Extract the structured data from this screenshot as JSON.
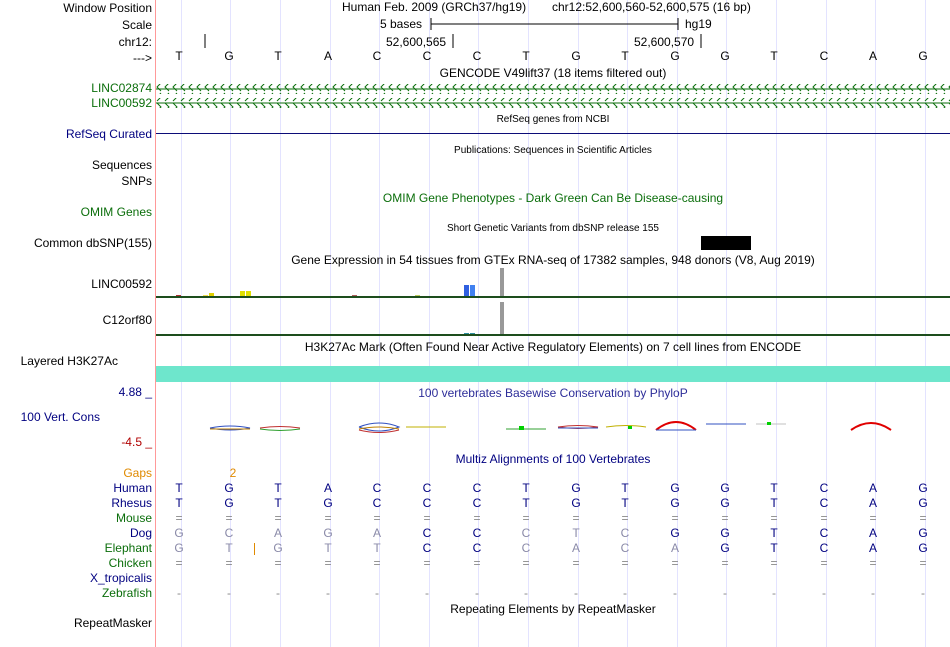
{
  "side": {
    "window_position": "Window Position",
    "scale": "Scale",
    "chrom": "chr12:",
    "strand": "--->",
    "linc02874": "LINC02874",
    "linc00592": "LINC00592",
    "refseq": "RefSeq Curated",
    "sequences": "Sequences",
    "snps": "SNPs",
    "omim": "OMIM Genes",
    "dbsnp": "Common dbSNP(155)",
    "exp_linc00592": "LINC00592",
    "exp_c12orf80": "C12orf80",
    "h3k27ac": "Layered H3K27Ac",
    "cons_max": "4.88 _",
    "cons_label": "100 Vert. Cons",
    "cons_min": "-4.5 _",
    "gaps": "Gaps",
    "human": "Human",
    "rhesus": "Rhesus",
    "mouse": "Mouse",
    "dog": "Dog",
    "elephant": "Elephant",
    "chicken": "Chicken",
    "xtrop": "X_tropicalis",
    "zebrafish": "Zebrafish",
    "repeatmasker": "RepeatMasker"
  },
  "header": {
    "assembly": "Human Feb. 2009 (GRCh37/hg19)",
    "position": "chr12:52,600,560-52,600,575 (16 bp)",
    "scale_text": "5 bases",
    "scale_db": "hg19",
    "tick1": "52,600,565",
    "tick2": "52,600,570"
  },
  "bases": [
    "T",
    "G",
    "T",
    "A",
    "C",
    "C",
    "C",
    "T",
    "G",
    "T",
    "G",
    "G",
    "T",
    "C",
    "A",
    "G"
  ],
  "track_titles": {
    "gencode": "GENCODE V49lift37 (18 items filtered out)",
    "refseq": "RefSeq genes from NCBI",
    "pubs": "Publications: Sequences in Scientific Articles",
    "omim": "OMIM Gene Phenotypes - Dark Green Can Be Disease-causing",
    "dbsnp": "Short Genetic Variants from dbSNP release 155",
    "gtex": "Gene Expression in 54 tissues from GTEx RNA-seq of 17382 samples, 948 donors (V8, Aug 2019)",
    "h3k27ac": "H3K27Ac Mark (Often Found Near Active Regulatory Elements) on 7 cell lines from ENCODE",
    "phylop": "100 vertebrates Basewise Conservation by PhyloP",
    "multiz": "Multiz Alignments of 100 Vertebrates",
    "repeat": "Repeating Elements by RepeatMasker"
  },
  "gaps_value": "2",
  "gaps_col": 1,
  "alignments": {
    "human": [
      "T",
      "G",
      "T",
      "A",
      "C",
      "C",
      "C",
      "T",
      "G",
      "T",
      "G",
      "G",
      "T",
      "C",
      "A",
      "G"
    ],
    "rhesus": [
      "T",
      "G",
      "T",
      "G",
      "C",
      "C",
      "C",
      "T",
      "G",
      "T",
      "G",
      "G",
      "T",
      "C",
      "A",
      "G"
    ],
    "mouse": [
      "=",
      "=",
      "=",
      "=",
      "=",
      "=",
      "=",
      "=",
      "=",
      "=",
      "=",
      "=",
      "=",
      "=",
      "=",
      "="
    ],
    "dog": [
      "G",
      "C",
      "A",
      "G",
      "A",
      "C",
      "C",
      "C",
      "T",
      "C",
      "G",
      "G",
      "T",
      "C",
      "A",
      "G"
    ],
    "elephant": [
      "G",
      "T",
      "G",
      "T",
      "T",
      "C",
      "C",
      "C",
      "A",
      "C",
      "A",
      "G",
      "T",
      "C",
      "A",
      "G"
    ],
    "chicken": [
      "=",
      "=",
      "=",
      "=",
      "=",
      "=",
      "=",
      "=",
      "=",
      "=",
      "=",
      "=",
      "=",
      "=",
      "=",
      "="
    ],
    "xtrop": [
      "",
      "",
      "",
      "",
      "",
      "",
      "",
      "",
      "",
      "",
      "",
      "",
      "",
      "",
      "",
      ""
    ],
    "zebrafish": [
      "-",
      "-",
      "-",
      "-",
      "-",
      "-",
      "-",
      "-",
      "-",
      "-",
      "-",
      "-",
      "-",
      "-",
      "-",
      "-"
    ]
  },
  "colors": {
    "gene_green": "#0b6e0b",
    "refseq_navy": "#0c0c78",
    "h3k27ac": "#6ee6cc",
    "divider": "#ff9999"
  }
}
